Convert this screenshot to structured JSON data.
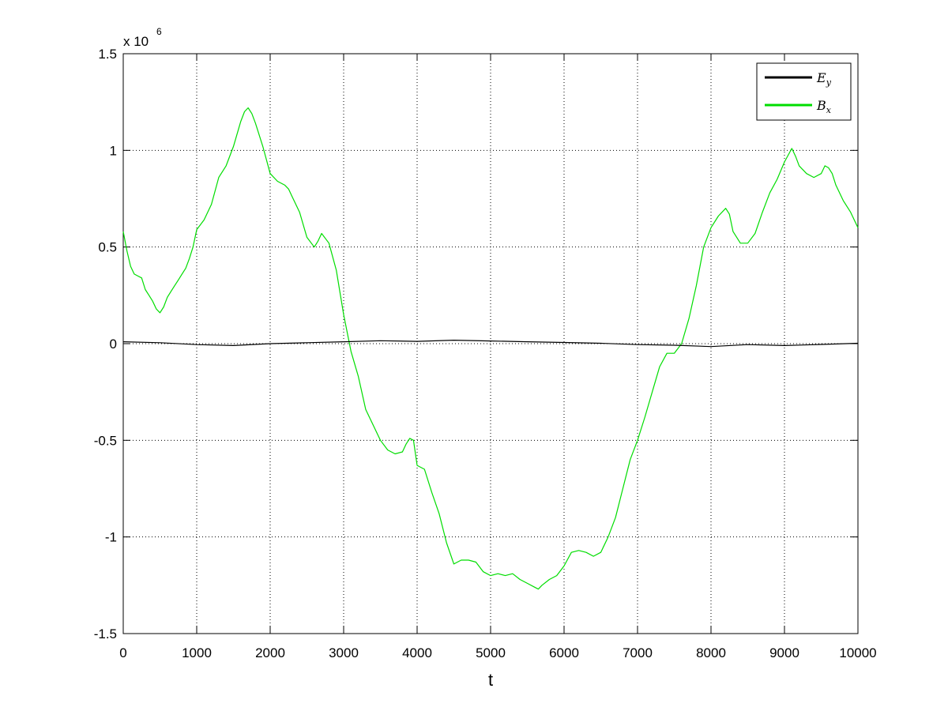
{
  "chart_data": {
    "type": "line",
    "title": "",
    "xlabel": "t",
    "ylabel": "",
    "y_exponent": {
      "base": "x 10",
      "power": "6"
    },
    "xlim": [
      0,
      10000
    ],
    "ylim": [
      -1.5,
      1.5
    ],
    "x_ticks": [
      0,
      1000,
      2000,
      3000,
      4000,
      5000,
      6000,
      7000,
      8000,
      9000,
      10000
    ],
    "x_tick_labels": [
      "0",
      "1000",
      "2000",
      "3000",
      "4000",
      "5000",
      "6000",
      "7000",
      "8000",
      "9000",
      "10000"
    ],
    "y_ticks": [
      -1.5,
      -1,
      -0.5,
      0,
      0.5,
      1,
      1.5
    ],
    "y_tick_labels": [
      "-1.5",
      "-1",
      "-0.5",
      "0",
      "0.5",
      "1",
      "1.5"
    ],
    "grid": true,
    "legend_position": "top-right",
    "series": [
      {
        "name": "E_y",
        "legend_base": "E",
        "legend_sub": "y",
        "color": "#000000",
        "x": [
          0,
          500,
          1000,
          1500,
          2000,
          2500,
          3000,
          3500,
          4000,
          4500,
          5000,
          5500,
          6000,
          6500,
          7000,
          7500,
          8000,
          8500,
          9000,
          9500,
          10000
        ],
        "values": [
          0.01,
          0.005,
          -0.005,
          -0.01,
          0.0,
          0.005,
          0.01,
          0.015,
          0.012,
          0.018,
          0.014,
          0.01,
          0.006,
          0.002,
          -0.005,
          -0.008,
          -0.015,
          -0.005,
          -0.01,
          -0.004,
          0.002
        ]
      },
      {
        "name": "B_x",
        "legend_base": "B",
        "legend_sub": "x",
        "color": "#00dd00",
        "x": [
          0,
          50,
          100,
          150,
          200,
          250,
          300,
          350,
          400,
          450,
          500,
          550,
          600,
          650,
          700,
          750,
          800,
          850,
          900,
          950,
          1000,
          1100,
          1200,
          1300,
          1400,
          1500,
          1600,
          1650,
          1700,
          1750,
          1800,
          1900,
          2000,
          2100,
          2200,
          2250,
          2300,
          2400,
          2500,
          2600,
          2650,
          2700,
          2800,
          2900,
          3000,
          3100,
          3200,
          3300,
          3400,
          3500,
          3600,
          3700,
          3800,
          3850,
          3900,
          3950,
          4000,
          4100,
          4200,
          4300,
          4400,
          4500,
          4600,
          4700,
          4800,
          4900,
          5000,
          5100,
          5200,
          5300,
          5400,
          5500,
          5600,
          5650,
          5700,
          5800,
          5900,
          6000,
          6100,
          6200,
          6300,
          6400,
          6500,
          6600,
          6700,
          6800,
          6900,
          7000,
          7100,
          7200,
          7300,
          7400,
          7500,
          7600,
          7700,
          7800,
          7900,
          8000,
          8100,
          8200,
          8250,
          8300,
          8400,
          8500,
          8600,
          8700,
          8800,
          8900,
          9000,
          9100,
          9150,
          9200,
          9300,
          9400,
          9500,
          9550,
          9600,
          9650,
          9700,
          9800,
          9900,
          10000
        ],
        "values": [
          0.58,
          0.48,
          0.4,
          0.36,
          0.35,
          0.34,
          0.28,
          0.25,
          0.22,
          0.18,
          0.16,
          0.19,
          0.24,
          0.27,
          0.3,
          0.33,
          0.36,
          0.39,
          0.44,
          0.5,
          0.59,
          0.64,
          0.72,
          0.86,
          0.92,
          1.02,
          1.15,
          1.2,
          1.22,
          1.19,
          1.14,
          1.02,
          0.88,
          0.84,
          0.82,
          0.8,
          0.76,
          0.68,
          0.55,
          0.5,
          0.53,
          0.57,
          0.52,
          0.38,
          0.15,
          -0.04,
          -0.17,
          -0.34,
          -0.42,
          -0.5,
          -0.55,
          -0.57,
          -0.56,
          -0.52,
          -0.49,
          -0.5,
          -0.63,
          -0.65,
          -0.77,
          -0.88,
          -1.03,
          -1.14,
          -1.12,
          -1.12,
          -1.13,
          -1.18,
          -1.2,
          -1.19,
          -1.2,
          -1.19,
          -1.22,
          -1.24,
          -1.26,
          -1.27,
          -1.25,
          -1.22,
          -1.2,
          -1.15,
          -1.08,
          -1.07,
          -1.08,
          -1.1,
          -1.08,
          -1.0,
          -0.9,
          -0.75,
          -0.6,
          -0.5,
          -0.38,
          -0.25,
          -0.12,
          -0.05,
          -0.05,
          0.0,
          0.13,
          0.3,
          0.5,
          0.6,
          0.66,
          0.7,
          0.67,
          0.58,
          0.52,
          0.52,
          0.57,
          0.68,
          0.78,
          0.85,
          0.94,
          1.01,
          0.97,
          0.92,
          0.88,
          0.86,
          0.88,
          0.92,
          0.91,
          0.88,
          0.82,
          0.74,
          0.68,
          0.6
        ]
      }
    ]
  }
}
